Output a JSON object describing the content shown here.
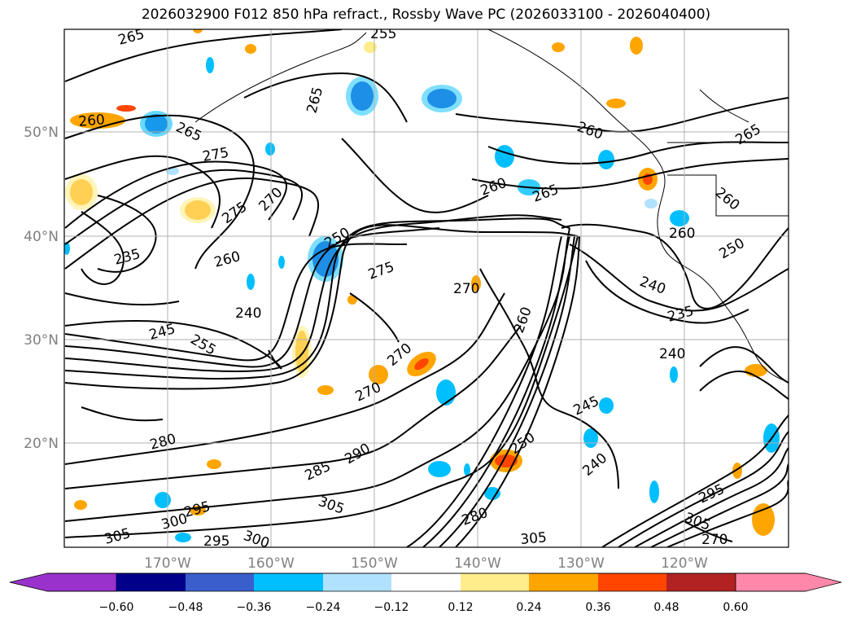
{
  "title": "2026032900 F012 850 hPa refract., Rossby Wave PC (2026033100 - 2026040400)",
  "latitude_labels": [
    "50°N",
    "40°N",
    "30°N",
    "20°N"
  ],
  "longitude_labels": [
    "170°W",
    "160°W",
    "150°W",
    "140°W",
    "130°W",
    "120°W"
  ],
  "contour_labels": [
    "265",
    "255",
    "265",
    "260",
    "265",
    "275",
    "260",
    "270",
    "275",
    "265",
    "260",
    "265",
    "260",
    "260",
    "250",
    "235",
    "260",
    "250",
    "275",
    "270",
    "240",
    "245",
    "240",
    "235",
    "255",
    "245",
    "240",
    "270",
    "270",
    "280",
    "290",
    "285",
    "305",
    "250",
    "240",
    "260",
    "295",
    "305",
    "300",
    "280",
    "295",
    "300",
    "305",
    "295",
    "305",
    "270"
  ],
  "colorbar": {
    "ticks": [
      "−0.60",
      "−0.48",
      "−0.36",
      "−0.24",
      "−0.12",
      "0.12",
      "0.24",
      "0.36",
      "0.48",
      "0.60"
    ],
    "colors": [
      "#9932cc",
      "#00008b",
      "#3a5fcd",
      "#00bfff",
      "#b0e2ff",
      "#ffffff",
      "#ffec8b",
      "#ffa500",
      "#ff4500",
      "#b22222",
      "#ff88aa"
    ]
  }
}
